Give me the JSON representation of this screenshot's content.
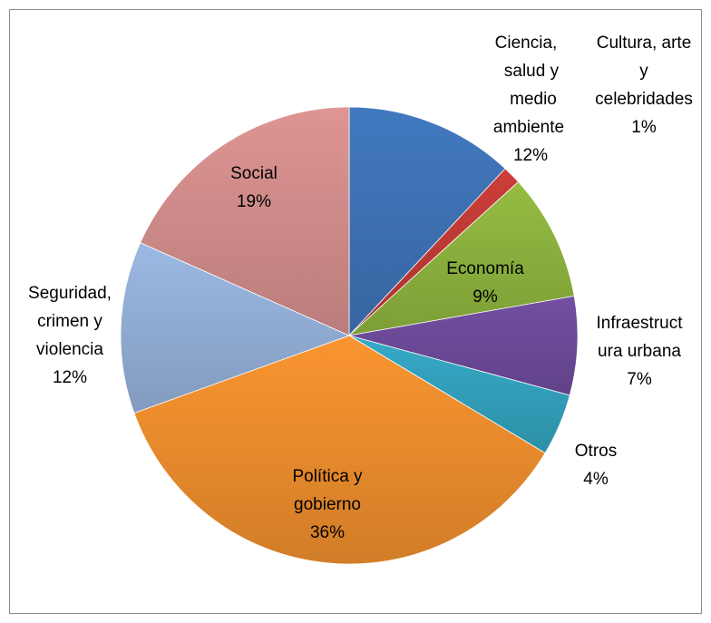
{
  "chart_data": {
    "type": "pie",
    "start_angle_deg": 0,
    "direction": "clockwise",
    "slices": [
      {
        "label_lines": [
          "Ciencia,",
          "salud y",
          "medio",
          "ambiente",
          "12%"
        ],
        "value": 12,
        "color": "#3E73B6"
      },
      {
        "label_lines": [
          "Cultura, arte",
          "y",
          "celebridades",
          "1%"
        ],
        "value": 1.3,
        "color": "#C23B36"
      },
      {
        "label_lines": [
          "Economía",
          "9%"
        ],
        "value": 9,
        "color": "#8EB33F"
      },
      {
        "label_lines": [
          "Infraestruct",
          "ura urbana",
          "7%"
        ],
        "value": 7,
        "color": "#6E4B9A"
      },
      {
        "label_lines": [
          "Otros",
          "4%"
        ],
        "value": 4.4,
        "color": "#33A2BE"
      },
      {
        "label_lines": [
          "Política y",
          "gobierno",
          "36%"
        ],
        "value": 36,
        "color": "#EE8E2E"
      },
      {
        "label_lines": [
          "Seguridad,",
          "crimen y",
          "violencia",
          "12%"
        ],
        "value": 12.2,
        "color": "#94B0D8"
      },
      {
        "label_lines": [
          "Social",
          "19%"
        ],
        "value": 18.4,
        "color": "#D38E8C"
      }
    ]
  }
}
